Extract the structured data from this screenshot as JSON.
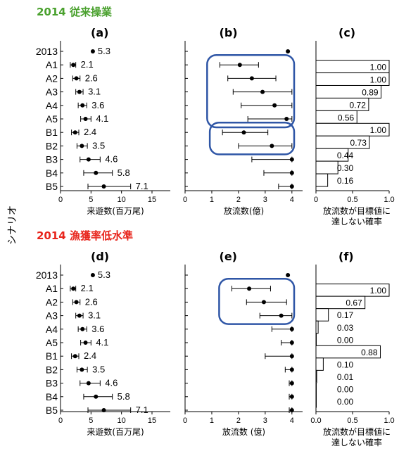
{
  "y_axis_label": "シナリオ",
  "scenarios": [
    "2013",
    "A1",
    "A2",
    "A3",
    "A4",
    "A5",
    "B1",
    "B2",
    "B3",
    "B4",
    "B5"
  ],
  "colors": {
    "title": "#4aa12e",
    "title2": "#e8251c",
    "highlight": "#2f56a6",
    "ink": "#000000"
  },
  "sections": [
    {
      "title": "2014  従来操業",
      "title_color": "#4aa12e"
    },
    {
      "title": "2014  漁獲率低水準",
      "title_color": "#e8251c"
    }
  ],
  "chart_data": [
    {
      "panel": "(a)",
      "type": "scatter",
      "error_bars": true,
      "xlabel": "来遊数(百万尾)",
      "xlim": [
        0,
        18
      ],
      "xticks": [
        0,
        5,
        10,
        15
      ],
      "categories": [
        "2013",
        "A1",
        "A2",
        "A3",
        "A4",
        "A5",
        "B1",
        "B2",
        "B3",
        "B4",
        "B5"
      ],
      "values": [
        5.3,
        2.1,
        2.6,
        3.1,
        3.6,
        4.1,
        2.4,
        3.5,
        4.6,
        5.8,
        7.1
      ],
      "lower": [
        null,
        1.6,
        2.0,
        2.5,
        2.9,
        3.3,
        1.8,
        2.7,
        3.2,
        3.8,
        4.5
      ],
      "upper": [
        null,
        2.5,
        3.2,
        3.7,
        4.3,
        5.0,
        3.0,
        4.4,
        6.5,
        8.5,
        11.5
      ],
      "data_labels": [
        "5.3",
        "2.1",
        "2.6",
        "3.1",
        "3.6",
        "4.1",
        "2.4",
        "3.5",
        "4.6",
        "5.8",
        "7.1"
      ]
    },
    {
      "panel": "(b)",
      "type": "scatter",
      "error_bars": true,
      "xlabel": "放流数(億)",
      "xlim": [
        0,
        4.4
      ],
      "xticks": [
        0,
        1,
        2,
        3,
        4
      ],
      "categories": [
        "2013",
        "A1",
        "A2",
        "A3",
        "A4",
        "A5",
        "B1",
        "B2",
        "B3",
        "B4",
        "B5"
      ],
      "values": [
        3.85,
        2.05,
        2.5,
        2.9,
        3.35,
        3.8,
        2.2,
        3.25,
        4.0,
        4.0,
        4.0
      ],
      "lower": [
        null,
        1.3,
        1.6,
        1.8,
        2.1,
        2.35,
        1.4,
        2.0,
        2.5,
        2.95,
        3.5
      ],
      "upper": [
        null,
        2.75,
        3.4,
        4.0,
        4.0,
        4.0,
        3.1,
        4.0,
        4.0,
        4.0,
        4.0
      ],
      "highlight_groups": [
        [
          "A1",
          "A5"
        ],
        [
          "B1",
          "B2"
        ]
      ]
    },
    {
      "panel": "(c)",
      "type": "bar",
      "orientation": "horizontal",
      "xlabel": "放流数が目標値に\n達しない確率",
      "xlim": [
        0,
        1
      ],
      "xticks": [
        "0",
        "0.5",
        "1.0"
      ],
      "categories": [
        "A1",
        "A2",
        "A3",
        "A4",
        "A5",
        "B1",
        "B2",
        "B3",
        "B4",
        "B5"
      ],
      "values": [
        1.0,
        1.0,
        0.89,
        0.72,
        0.56,
        1.0,
        0.73,
        0.44,
        0.3,
        0.16
      ],
      "data_labels": [
        "1.00",
        "1.00",
        "0.89",
        "0.72",
        "0.56",
        "1.00",
        "0.73",
        "0.44",
        "0.30",
        "0.16"
      ]
    },
    {
      "panel": "(d)",
      "type": "scatter",
      "error_bars": true,
      "xlabel": "来遊数(百万尾)",
      "xlim": [
        0,
        18
      ],
      "xticks": [
        0,
        5,
        10,
        15
      ],
      "categories": [
        "2013",
        "A1",
        "A2",
        "A3",
        "A4",
        "A5",
        "B1",
        "B2",
        "B3",
        "B4",
        "B5"
      ],
      "values": [
        5.3,
        2.1,
        2.6,
        3.1,
        3.6,
        4.1,
        2.4,
        3.5,
        4.6,
        5.8,
        7.1
      ],
      "lower": [
        null,
        1.6,
        2.0,
        2.5,
        2.9,
        3.3,
        1.8,
        2.7,
        3.2,
        3.8,
        4.5
      ],
      "upper": [
        null,
        2.5,
        3.2,
        3.7,
        4.3,
        5.0,
        3.0,
        4.4,
        6.5,
        8.5,
        11.5
      ],
      "data_labels": [
        "5.3",
        "2.1",
        "2.6",
        "3.1",
        "3.6",
        "4.1",
        "2.4",
        "3.5",
        "4.6",
        "5.8",
        "7.1"
      ]
    },
    {
      "panel": "(e)",
      "type": "scatter",
      "error_bars": true,
      "xlabel": "放流数 (億)",
      "xlim": [
        0,
        4.4
      ],
      "xticks": [
        0,
        1,
        2,
        3,
        4
      ],
      "categories": [
        "2013",
        "A1",
        "A2",
        "A3",
        "A4",
        "A5",
        "B1",
        "B2",
        "B3",
        "B4",
        "B5"
      ],
      "values": [
        3.85,
        2.4,
        2.95,
        3.6,
        4.0,
        4.0,
        4.0,
        4.0,
        4.0,
        4.0,
        4.0
      ],
      "lower": [
        null,
        1.75,
        2.3,
        2.8,
        3.25,
        3.6,
        3.0,
        3.75,
        3.9,
        3.9,
        3.9
      ],
      "upper": [
        null,
        3.2,
        3.8,
        4.0,
        4.0,
        4.0,
        4.0,
        4.0,
        4.0,
        4.0,
        4.0
      ],
      "highlight_groups": [
        [
          "A1",
          "A3"
        ]
      ]
    },
    {
      "panel": "(f)",
      "type": "bar",
      "orientation": "horizontal",
      "xlabel": "放流数が目標値に\n達しない確率",
      "xlim": [
        0,
        1
      ],
      "xticks": [
        "0.0",
        "0.5",
        "1.0"
      ],
      "categories": [
        "A1",
        "A2",
        "A3",
        "A4",
        "A5",
        "B1",
        "B2",
        "B3",
        "B4",
        "B5"
      ],
      "values": [
        1.0,
        0.67,
        0.17,
        0.03,
        0.0,
        0.88,
        0.1,
        0.01,
        0.0,
        0.0
      ],
      "data_labels": [
        "1.00",
        "0.67",
        "0.17",
        "0.03",
        "0.00",
        "0.88",
        "0.10",
        "0.01",
        "0.00",
        "0.00"
      ]
    }
  ]
}
